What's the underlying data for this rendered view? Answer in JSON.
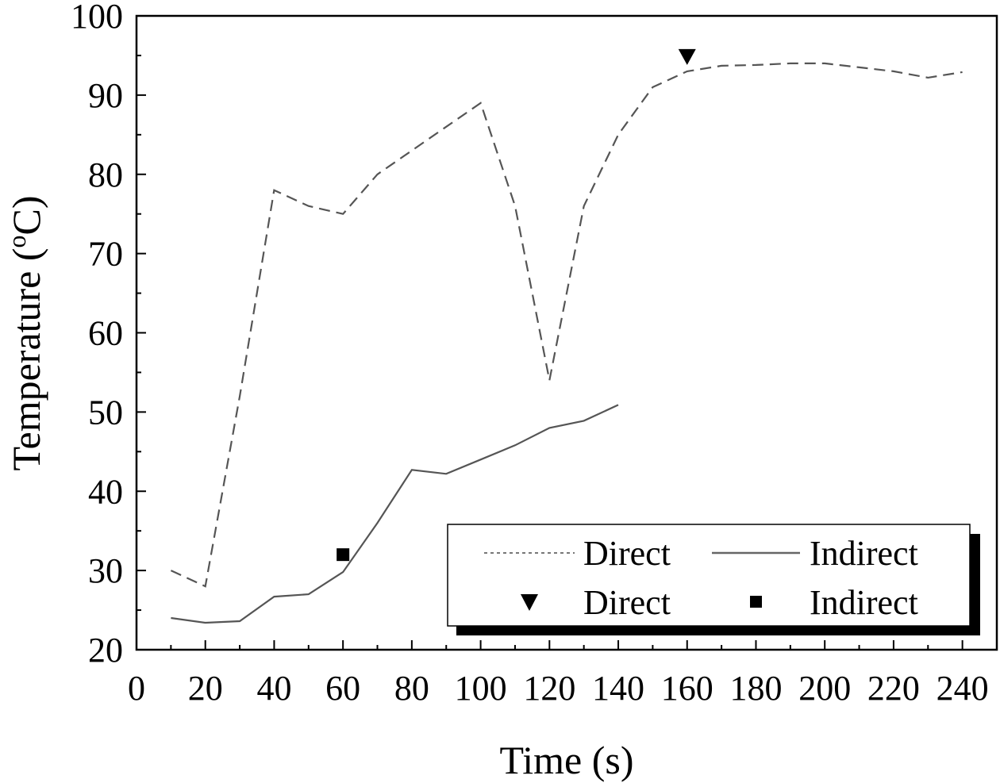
{
  "chart_data": {
    "type": "line",
    "xlabel": "Time (s)",
    "ylabel_main": "Temperature (",
    "ylabel_sup": "o",
    "ylabel_tail": "C)",
    "xlim": [
      0,
      250
    ],
    "ylim": [
      20,
      100
    ],
    "xticks": [
      0,
      20,
      40,
      60,
      80,
      100,
      120,
      140,
      160,
      180,
      200,
      220,
      240
    ],
    "yticks": [
      20,
      30,
      40,
      50,
      60,
      70,
      80,
      90,
      100
    ],
    "grid": false,
    "legend_placement": "bottom-right",
    "series": [
      {
        "name": "Direct",
        "style": "dashed",
        "color": "#555555",
        "x": [
          10,
          20,
          30,
          40,
          50,
          60,
          70,
          80,
          90,
          100,
          110,
          120,
          130,
          140,
          150,
          160,
          170,
          180,
          190,
          200,
          210,
          220,
          230,
          240
        ],
        "y": [
          30,
          28,
          52,
          78,
          76,
          75,
          80,
          83,
          86,
          89,
          76,
          54,
          76,
          85,
          91,
          93,
          93.7,
          93.8,
          94,
          94,
          93.5,
          93,
          92.2,
          92.9
        ]
      },
      {
        "name": "Indirect",
        "style": "solid",
        "color": "#555555",
        "x": [
          10,
          20,
          30,
          40,
          50,
          60,
          70,
          80,
          90,
          100,
          110,
          120,
          130,
          140
        ],
        "y": [
          24,
          23.4,
          23.6,
          26.7,
          27,
          29.8,
          36,
          42.7,
          42.2,
          44,
          45.8,
          48,
          48.9,
          50.9
        ]
      }
    ],
    "markers": [
      {
        "name": "Direct",
        "shape": "triangle-down",
        "x": 160,
        "y": 94.8
      },
      {
        "name": "Indirect",
        "shape": "square",
        "x": 60,
        "y": 32
      }
    ]
  }
}
